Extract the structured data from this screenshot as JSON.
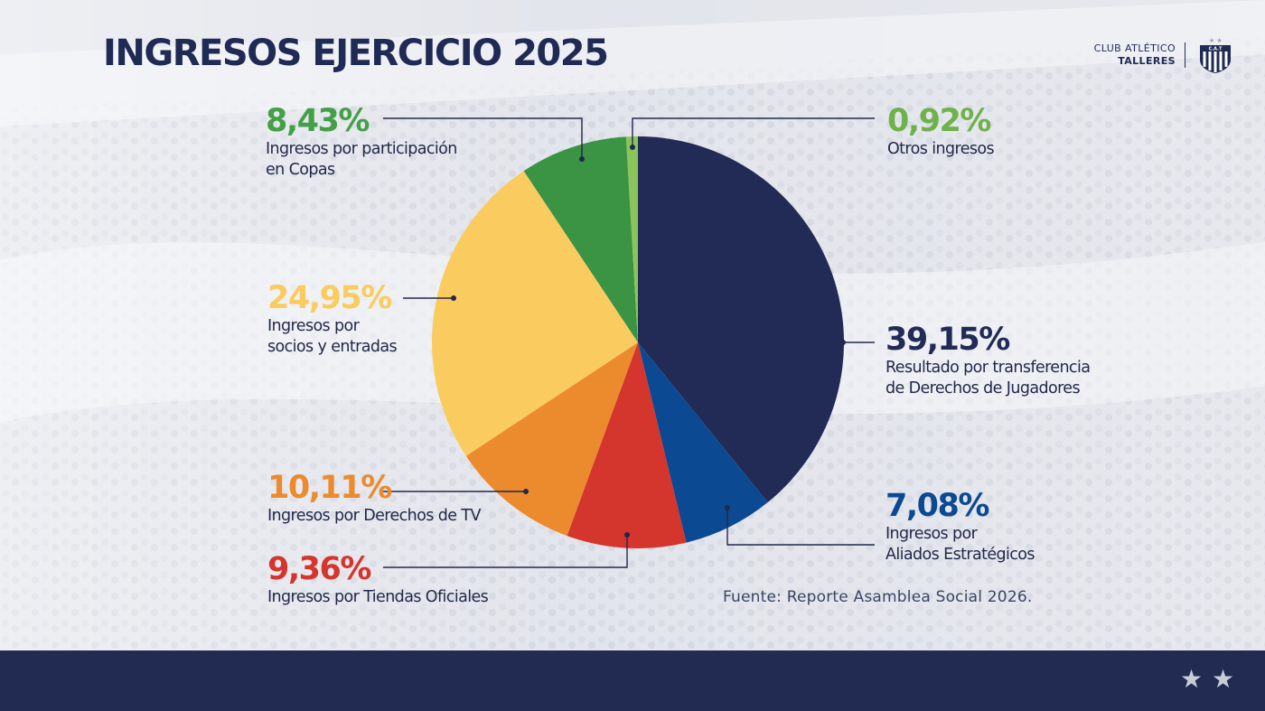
{
  "header": {
    "title": "INGRESOS EJERCICIO 2025",
    "brand_line1": "CLUB ATLÉTICO",
    "brand_line2": "TALLERES",
    "crest_text": "C.A.T"
  },
  "chart_data": {
    "type": "pie",
    "title": "INGRESOS EJERCICIO 2025",
    "slices": [
      {
        "key": "jugadores",
        "value": 39.15,
        "pct_label": "39,15%",
        "label": "Resultado por transferencia de Derechos de Jugadores",
        "label_lines": [
          "Resultado por transferencia",
          "de Derechos de Jugadores"
        ],
        "color": "#212b55",
        "pct_color": "#212b55"
      },
      {
        "key": "aliados",
        "value": 7.08,
        "pct_label": "7,08%",
        "label": "Ingresos por Aliados Estratégicos",
        "label_lines": [
          "Ingresos por",
          "Aliados Estratégicos"
        ],
        "color": "#0b4a93",
        "pct_color": "#0b4a93"
      },
      {
        "key": "tiendas",
        "value": 9.36,
        "pct_label": "9,36%",
        "label": "Ingresos por Tiendas Oficiales",
        "label_lines": [
          "Ingresos por Tiendas Oficiales"
        ],
        "color": "#d4352c",
        "pct_color": "#d4352c"
      },
      {
        "key": "tv",
        "value": 10.11,
        "pct_label": "10,11%",
        "label": "Ingresos por Derechos de TV",
        "label_lines": [
          "Ingresos por Derechos de TV"
        ],
        "color": "#ec8a2e",
        "pct_color": "#ec8a2e"
      },
      {
        "key": "socios",
        "value": 24.95,
        "pct_label": "24,95%",
        "label": "Ingresos por socios y entradas",
        "label_lines": [
          "Ingresos por",
          "socios y entradas"
        ],
        "color": "#facb5e",
        "pct_color": "#facb5e"
      },
      {
        "key": "copas",
        "value": 8.43,
        "pct_label": "8,43%",
        "label": "Ingresos por participación en Copas",
        "label_lines": [
          "Ingresos por participación",
          "en Copas"
        ],
        "color": "#3a9443",
        "pct_color": "#43a047"
      },
      {
        "key": "otros",
        "value": 0.92,
        "pct_label": "0,92%",
        "label": "Otros ingresos",
        "label_lines": [
          "Otros ingresos"
        ],
        "color": "#8bc45a",
        "pct_color": "#6fb24a"
      }
    ],
    "start": "12 o'clock",
    "direction": "clockwise",
    "line_color": "#22284a"
  },
  "source": "Fuente: Reporte Asamblea Social 2026.",
  "footer": {
    "star": "★",
    "color": "#222b52"
  }
}
